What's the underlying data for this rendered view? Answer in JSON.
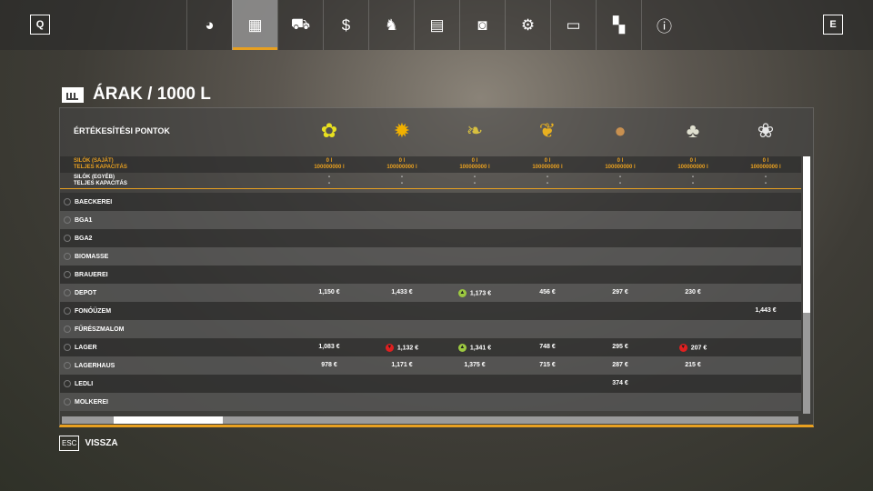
{
  "topbar": {
    "left_key": "Q",
    "right_key": "E",
    "active_tab": 1,
    "tabs": [
      {
        "icon": "globe-icon",
        "glyph": "◕"
      },
      {
        "icon": "prices-chart-icon",
        "glyph": "▦"
      },
      {
        "icon": "tractor-icon",
        "glyph": "⛟"
      },
      {
        "icon": "money-icon",
        "glyph": "$"
      },
      {
        "icon": "cow-icon",
        "glyph": "♞"
      },
      {
        "icon": "contracts-icon",
        "glyph": "▤"
      },
      {
        "icon": "tutorial-board-icon",
        "glyph": "◙"
      },
      {
        "icon": "vehicle-settings-icon",
        "glyph": "⚙"
      },
      {
        "icon": "display-settings-icon",
        "glyph": "▭"
      },
      {
        "icon": "general-settings-icon",
        "glyph": "▚"
      },
      {
        "icon": "help-info-icon",
        "glyph": "ⓘ"
      }
    ]
  },
  "title": "ÁRAK / 1000 L",
  "header": {
    "label": "ÉRTÉKESÍTÉSI PONTOK",
    "crops": [
      {
        "icon": "rapeseed-icon",
        "glyph": "✿",
        "color": "#e8e020"
      },
      {
        "icon": "sunflower-icon",
        "glyph": "✹",
        "color": "#f0b000"
      },
      {
        "icon": "soybean-icon",
        "glyph": "❧",
        "color": "#d8c040"
      },
      {
        "icon": "maize-icon",
        "glyph": "❦",
        "color": "#e8b020"
      },
      {
        "icon": "potato-icon",
        "glyph": "●",
        "color": "#c89050"
      },
      {
        "icon": "sugarbeet-icon",
        "glyph": "♣",
        "color": "#e0e0d0"
      },
      {
        "icon": "cotton-icon",
        "glyph": "❀",
        "color": "#e8e8e8"
      }
    ]
  },
  "silos": [
    {
      "label": "SILÓK (SAJÁT)",
      "sub": "TELJES KAPACITÁS",
      "color": "#e8a020",
      "values": [
        "0 l",
        "0 l",
        "0 l",
        "0 l",
        "0 l",
        "0 l",
        "0 l"
      ],
      "caps": [
        "100000000 l",
        "100000000 l",
        "100000000 l",
        "100000000 l",
        "100000000 l",
        "100000000 l",
        "100000000 l"
      ]
    },
    {
      "label": "SILÓK (EGYÉB)",
      "sub": "TELJES KAPACITÁS",
      "color": "#ffffff",
      "values": [
        "-",
        "-",
        "-",
        "-",
        "-",
        "-",
        "-"
      ],
      "caps": [
        "-",
        "-",
        "-",
        "-",
        "-",
        "-",
        "-"
      ]
    }
  ],
  "rows": [
    {
      "name": "BAECKEREI",
      "prices": [
        "",
        "",
        "",
        "",
        "",
        "",
        ""
      ]
    },
    {
      "name": "BGA1",
      "prices": [
        "",
        "",
        "",
        "",
        "",
        "",
        ""
      ]
    },
    {
      "name": "BGA2",
      "prices": [
        "",
        "",
        "",
        "",
        "",
        "",
        ""
      ]
    },
    {
      "name": "BIOMASSE",
      "prices": [
        "",
        "",
        "",
        "",
        "",
        "",
        ""
      ]
    },
    {
      "name": "BRAUEREI",
      "prices": [
        "",
        "",
        "",
        "",
        "",
        "",
        ""
      ]
    },
    {
      "name": "DEPOT",
      "prices": [
        "1,150 €",
        "1,433 €",
        "1,173 €",
        "456 €",
        "297 €",
        "230 €",
        ""
      ],
      "trends": [
        "",
        "",
        "up",
        "",
        "",
        "",
        ""
      ]
    },
    {
      "name": "FONÓÜZEM",
      "prices": [
        "",
        "",
        "",
        "",
        "",
        "",
        "1,443 €"
      ]
    },
    {
      "name": "FŰRÉSZMALOM",
      "prices": [
        "",
        "",
        "",
        "",
        "",
        "",
        ""
      ]
    },
    {
      "name": "LAGER",
      "prices": [
        "1,083 €",
        "1,132 €",
        "1,341 €",
        "748 €",
        "295 €",
        "207 €",
        ""
      ],
      "trends": [
        "",
        "down",
        "up",
        "",
        "",
        "down",
        ""
      ]
    },
    {
      "name": "LAGERHAUS",
      "prices": [
        "978 €",
        "1,171 €",
        "1,375 €",
        "715 €",
        "287 €",
        "215 €",
        ""
      ]
    },
    {
      "name": "LEDLI",
      "prices": [
        "",
        "",
        "",
        "",
        "374 €",
        "",
        ""
      ]
    },
    {
      "name": "MOLKEREI",
      "prices": [
        "",
        "",
        "",
        "",
        "",
        "",
        ""
      ]
    }
  ],
  "trend_colors": {
    "up": "#9cc840",
    "down": "#e02020"
  },
  "footer": {
    "key": "ESC",
    "label": "VISSZA"
  }
}
